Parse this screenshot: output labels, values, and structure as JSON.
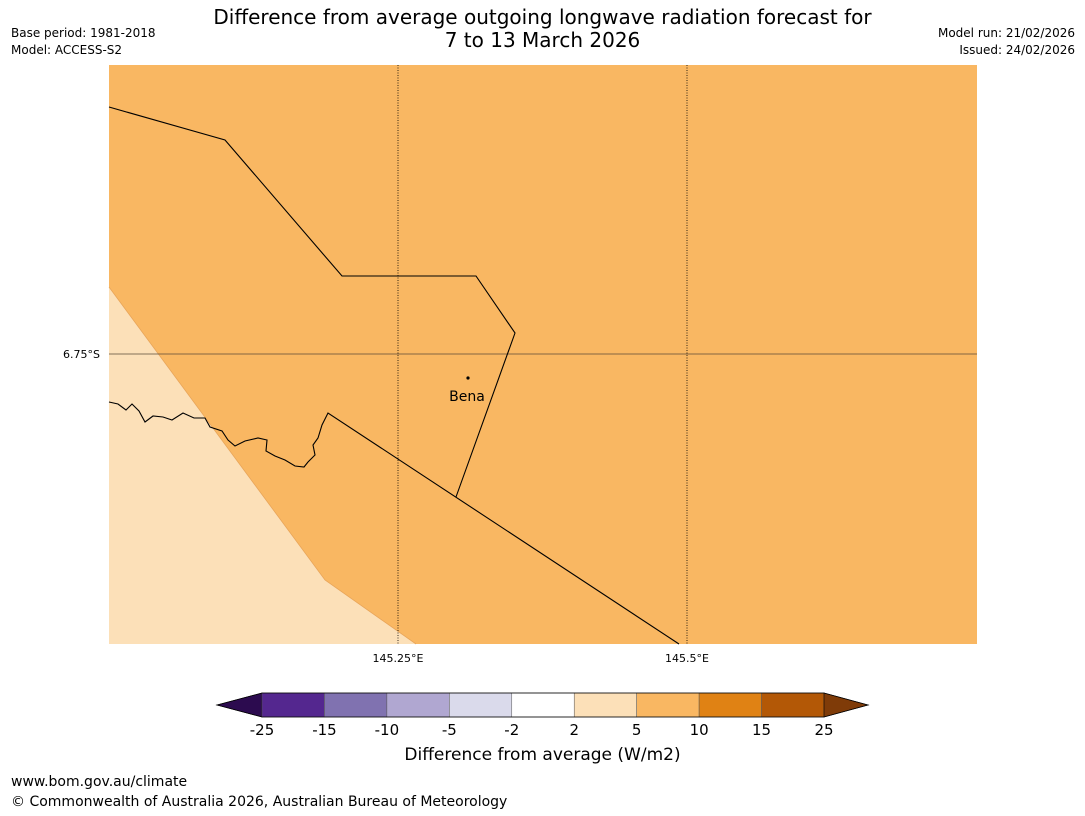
{
  "title": {
    "line1": "Difference from average outgoing longwave radiation forecast for",
    "line2": "7 to 13 March 2026"
  },
  "meta_left": {
    "base_period": "Base period: 1981-2018",
    "model": "Model: ACCESS-S2"
  },
  "meta_right": {
    "model_run": "Model run: 21/02/2026",
    "issued": "Issued: 24/02/2026"
  },
  "map": {
    "latitude_labels": [
      "6.75°S"
    ],
    "longitude_labels": [
      "145.25°E",
      "145.5°E"
    ],
    "place": {
      "name": "Bena"
    },
    "fill_colors": {
      "main": "#f9b762",
      "light": "#fce0b8"
    }
  },
  "colorbar": {
    "title": "Difference from average (W/m2)",
    "tick_labels": [
      "-25",
      "-15",
      "-10",
      "-5",
      "-2",
      "2",
      "5",
      "10",
      "15",
      "25"
    ],
    "colors": [
      "#2c0b4f",
      "#54278f",
      "#8072b0",
      "#b0a7d1",
      "#dadaeb",
      "#ffffff",
      "#fce0b8",
      "#f9b762",
      "#e08214",
      "#b35806",
      "#7f3b08"
    ]
  },
  "footer": {
    "url": "www.bom.gov.au/climate",
    "copyright": "© Commonwealth of Australia 2026, Australian Bureau of Meteorology"
  }
}
